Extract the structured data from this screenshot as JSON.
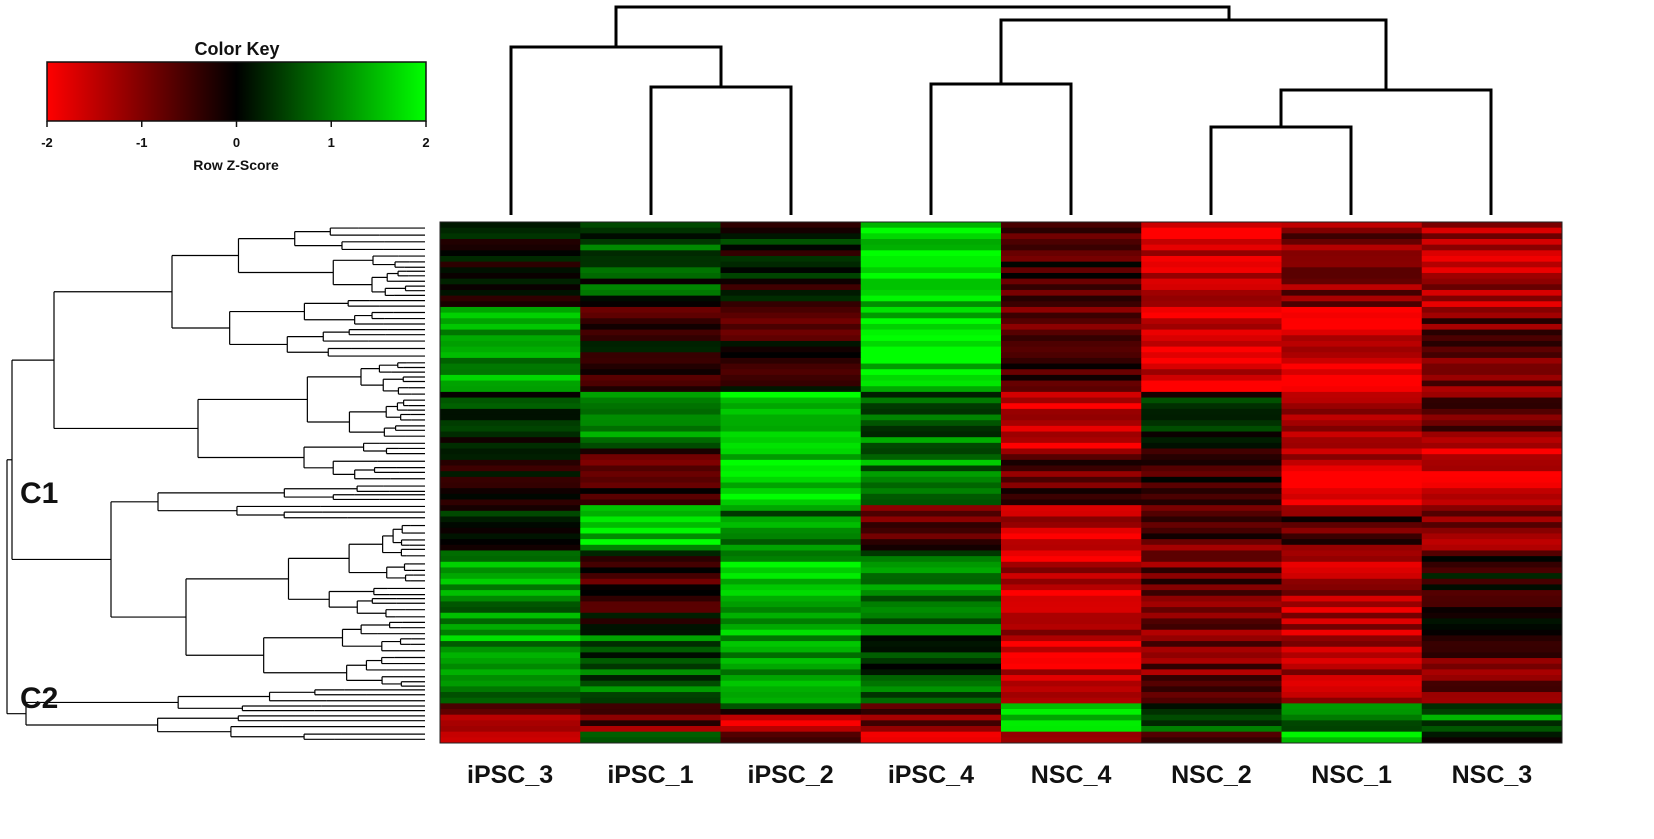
{
  "chart_data": {
    "type": "heatmap",
    "color_key": {
      "title": "Color Key",
      "label": "Row Z-Score",
      "ticks": [
        "-2",
        "-1",
        "0",
        "1",
        "2"
      ],
      "range": [
        -2,
        2
      ],
      "colors": {
        "low": "#ff0000",
        "mid": "#000000",
        "high": "#00ff00"
      }
    },
    "columns": [
      "iPSC_3",
      "iPSC_1",
      "iPSC_2",
      "iPSC_4",
      "NSC_4",
      "NSC_2",
      "NSC_1",
      "NSC_3"
    ],
    "row_clusters": [
      "C1",
      "C2"
    ],
    "row_blocks": [
      {
        "rows": 15,
        "values": [
          0.2,
          0.5,
          0.1,
          1.7,
          -0.5,
          -1.6,
          -1.0,
          -1.4
        ]
      },
      {
        "rows": 15,
        "values": [
          1.3,
          -0.3,
          -0.3,
          1.8,
          -0.6,
          -1.7,
          -1.8,
          -0.8
        ]
      },
      {
        "rows": 10,
        "values": [
          0.4,
          1.0,
          1.8,
          0.8,
          -1.7,
          0.1,
          -1.3,
          -0.9
        ]
      },
      {
        "rows": 10,
        "values": [
          0.1,
          -0.4,
          1.7,
          1.0,
          -0.6,
          -0.5,
          -1.6,
          -1.8
        ]
      },
      {
        "rows": 8,
        "values": [
          0.3,
          1.6,
          1.0,
          -0.6,
          -1.6,
          -0.7,
          -0.6,
          -1.0
        ]
      },
      {
        "rows": 15,
        "values": [
          1.1,
          -0.3,
          1.5,
          1.0,
          -1.5,
          -0.8,
          -1.4,
          -0.2
        ]
      },
      {
        "rows": 12,
        "values": [
          1.2,
          0.7,
          1.2,
          0.6,
          -1.7,
          -0.9,
          -1.3,
          -0.8
        ]
      },
      {
        "rows": 2,
        "values": [
          -1.0,
          -0.5,
          0.3,
          -0.7,
          1.4,
          0.5,
          0.8,
          0.6
        ]
      },
      {
        "rows": 3,
        "values": [
          -1.6,
          -0.8,
          -1.4,
          -0.9,
          1.3,
          0.7,
          1.0,
          0.9
        ]
      },
      {
        "rows": 2,
        "values": [
          -1.3,
          0.6,
          -0.7,
          -1.9,
          -0.9,
          -0.1,
          1.6,
          0.2
        ]
      }
    ]
  }
}
